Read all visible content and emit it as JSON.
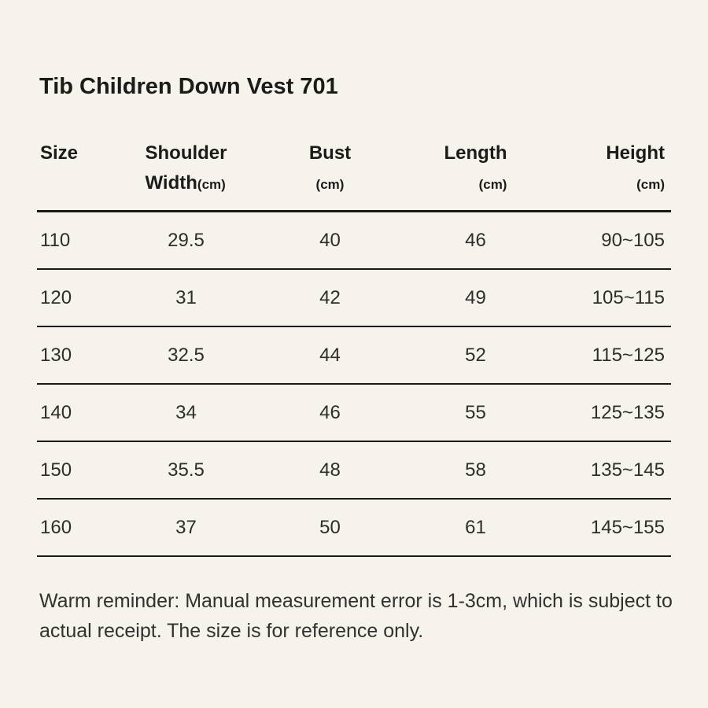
{
  "theme": {
    "background": "#f5f3ec",
    "line_color": "#1b1916",
    "heading_color": "#1d1b18",
    "body_color": "#2f2d2a"
  },
  "title": "Tib Children Down Vest 701",
  "size_chart": {
    "header": {
      "size": "Size",
      "shoulder_line1": "Shoulder",
      "shoulder_line2": "Width",
      "shoulder_unit": "(cm)",
      "bust": "Bust",
      "bust_unit": "(cm)",
      "length": "Length",
      "length_unit": "(cm)",
      "height": "Height",
      "height_unit": "(cm)"
    },
    "rows": [
      {
        "size": "110",
        "shoulder_width": "29.5",
        "bust": "40",
        "length": "46",
        "height": "90~105"
      },
      {
        "size": "120",
        "shoulder_width": "31",
        "bust": "42",
        "length": "49",
        "height": "105~115"
      },
      {
        "size": "130",
        "shoulder_width": "32.5",
        "bust": "44",
        "length": "52",
        "height": "115~125"
      },
      {
        "size": "140",
        "shoulder_width": "34",
        "bust": "46",
        "length": "55",
        "height": "125~135"
      },
      {
        "size": "150",
        "shoulder_width": "35.5",
        "bust": "48",
        "length": "58",
        "height": "135~145"
      },
      {
        "size": "160",
        "shoulder_width": "37",
        "bust": "50",
        "length": "61",
        "height": "145~155"
      }
    ]
  },
  "reminder": {
    "line1": "Warm reminder: Manual measurement error is 1-3cm, which is subject to",
    "line2": "actual receipt. The size is for reference only."
  }
}
